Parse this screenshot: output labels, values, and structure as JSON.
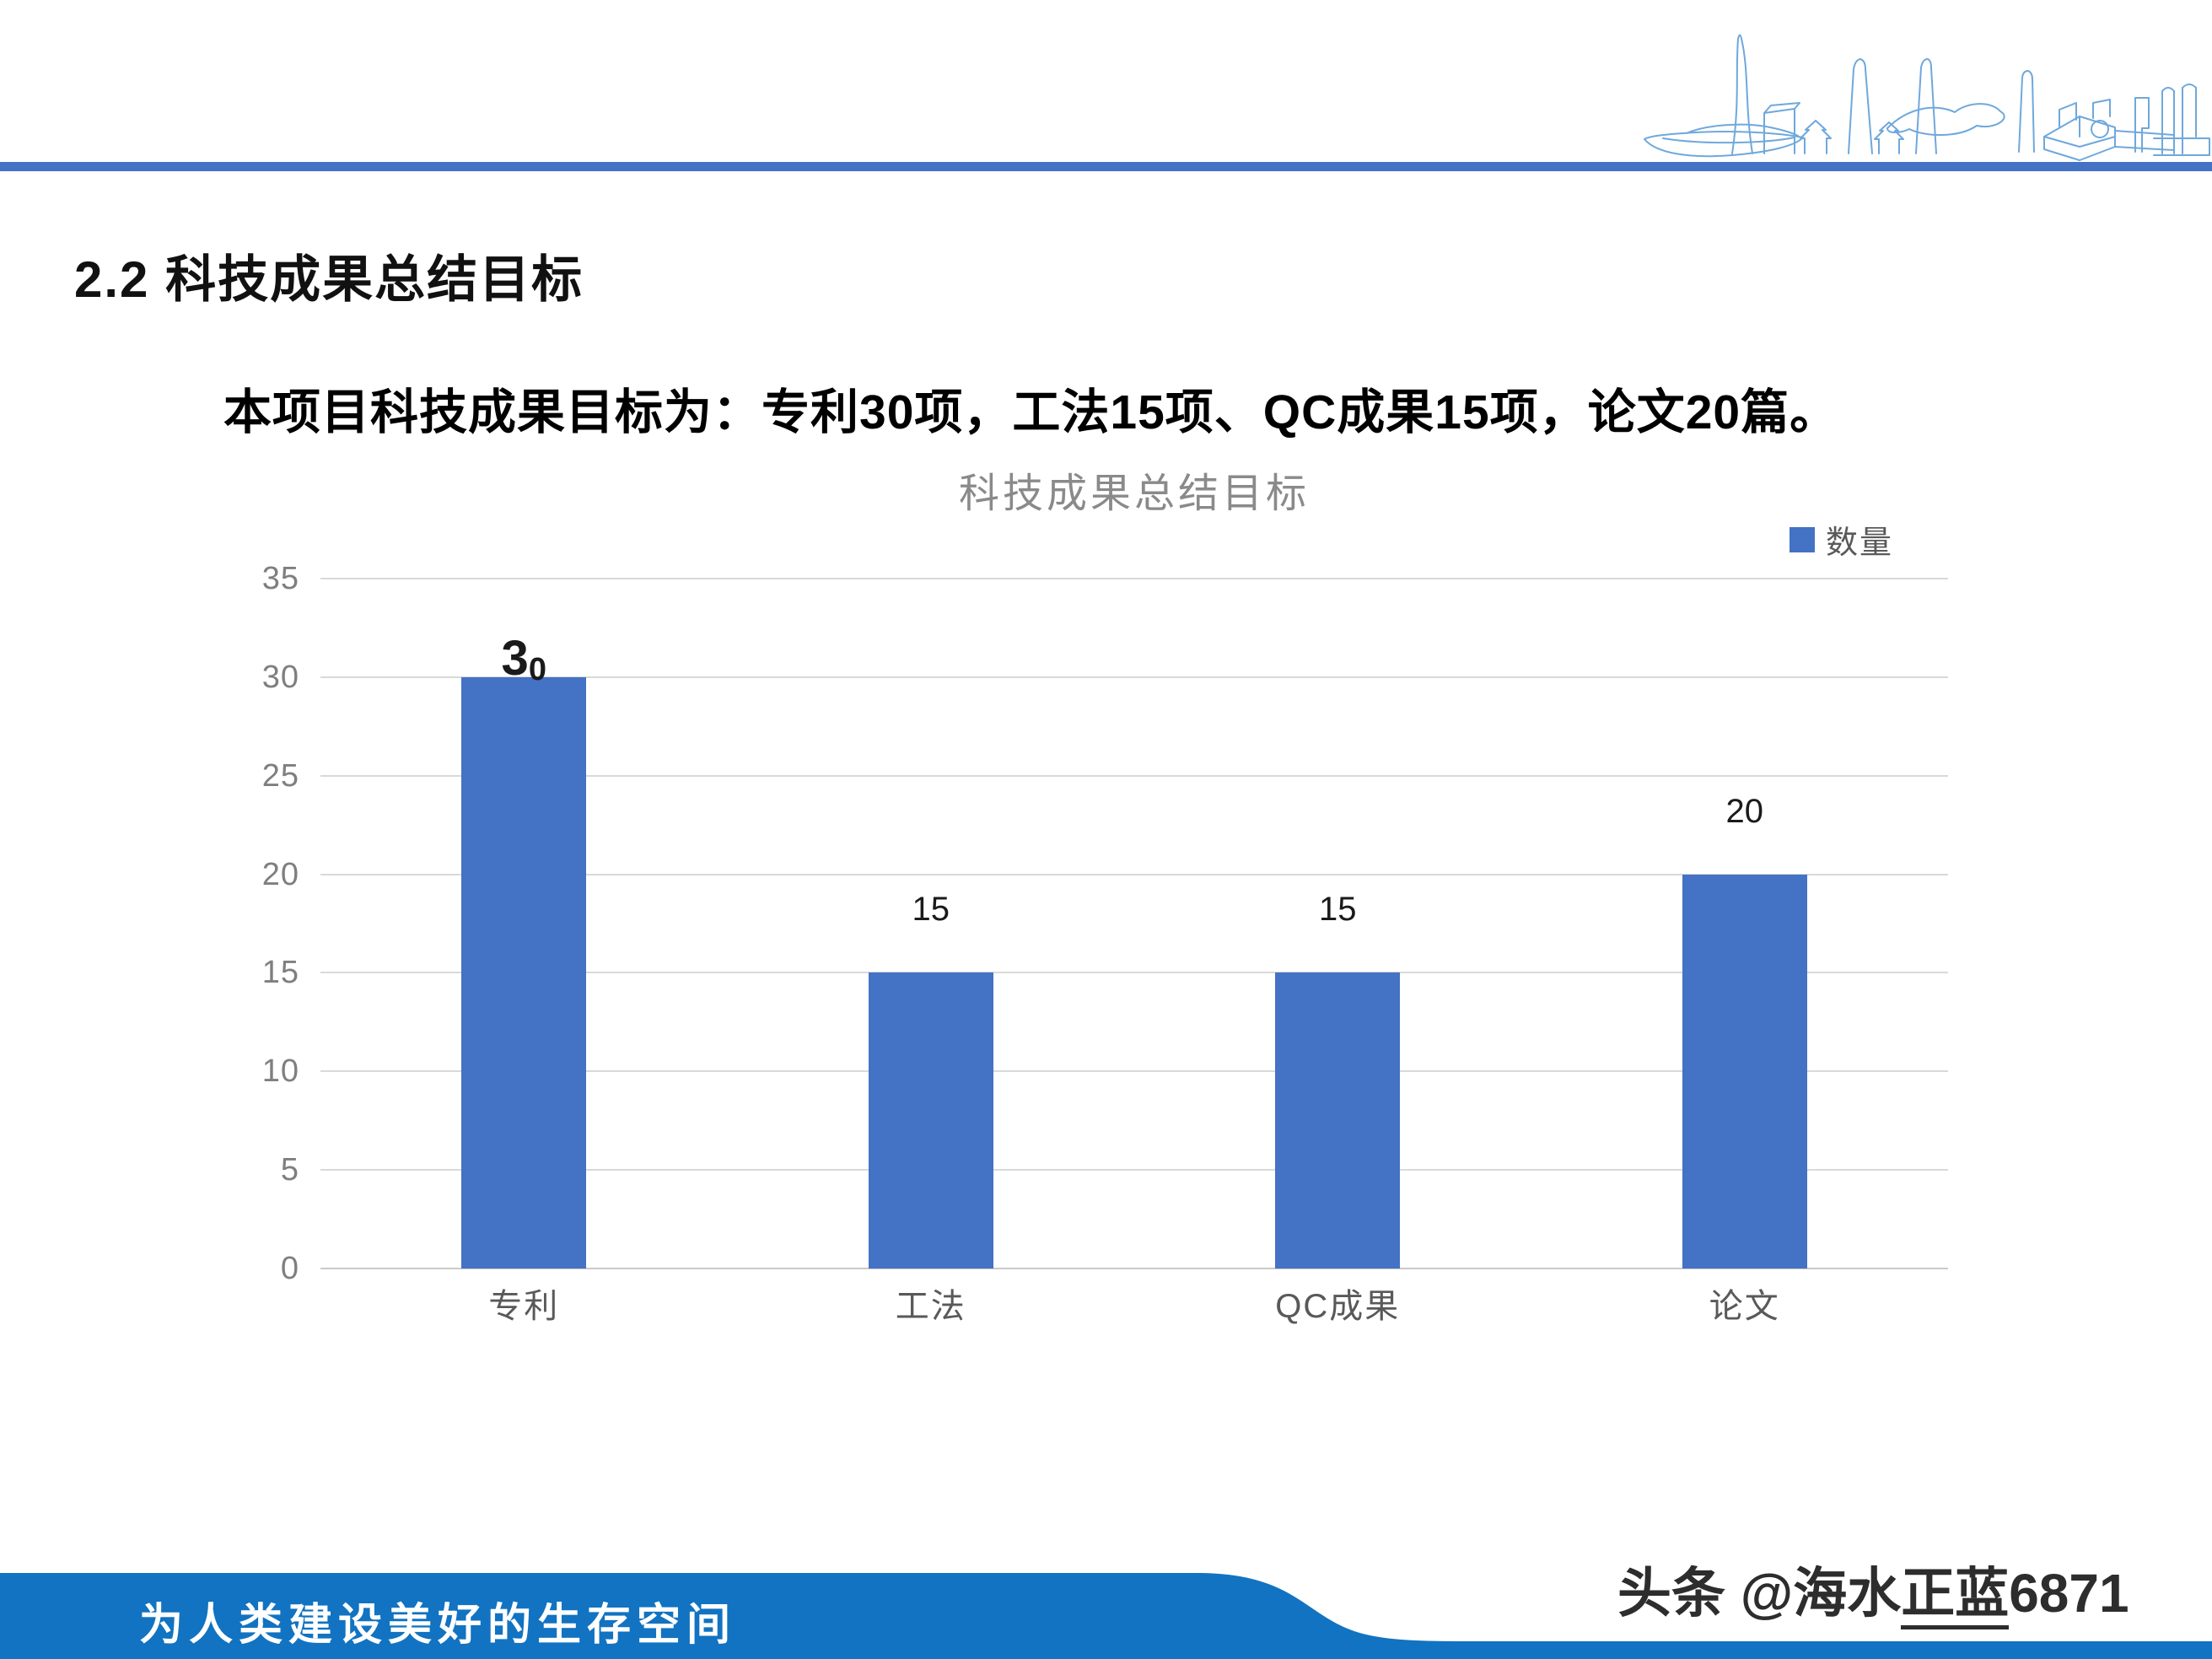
{
  "slide": {
    "section_title": "2.2 科技成果总结目标",
    "body_text": "本项目科技成果目标为：专利30项，工法15项、QC成果15项，论文20篇。",
    "footer_text": "为人类建设美好的生存空间",
    "watermark": {
      "prefix": "头条 @海水",
      "underlined": "正蓝",
      "suffix": "6871"
    }
  },
  "chart_data": {
    "type": "bar",
    "title": "科技成果总结目标",
    "legend": [
      "数量"
    ],
    "legend_position": "top-right",
    "categories": [
      "专利",
      "工法",
      "QC成果",
      "论文"
    ],
    "series": [
      {
        "name": "数量",
        "values": [
          30,
          15,
          15,
          20
        ]
      }
    ],
    "data_labels": [
      "30",
      "15",
      "15",
      "20"
    ],
    "first_label_style": "split",
    "y_ticks": [
      35,
      30,
      25,
      20,
      15,
      10,
      5,
      0
    ],
    "ylim": [
      0,
      35
    ],
    "grid": true,
    "xlabel": "",
    "ylabel": "",
    "bar_color": "#4472C4"
  },
  "colors": {
    "top_line": "#4472C4",
    "bar": "#4472C4",
    "footer_band": "#1173C1",
    "gridline": "#D9D9D9",
    "tick_text": "#7f7f7f",
    "category_text": "#595959",
    "chart_title_text": "#8a8a8a",
    "skyline_stroke": "#6FA8DC"
  }
}
